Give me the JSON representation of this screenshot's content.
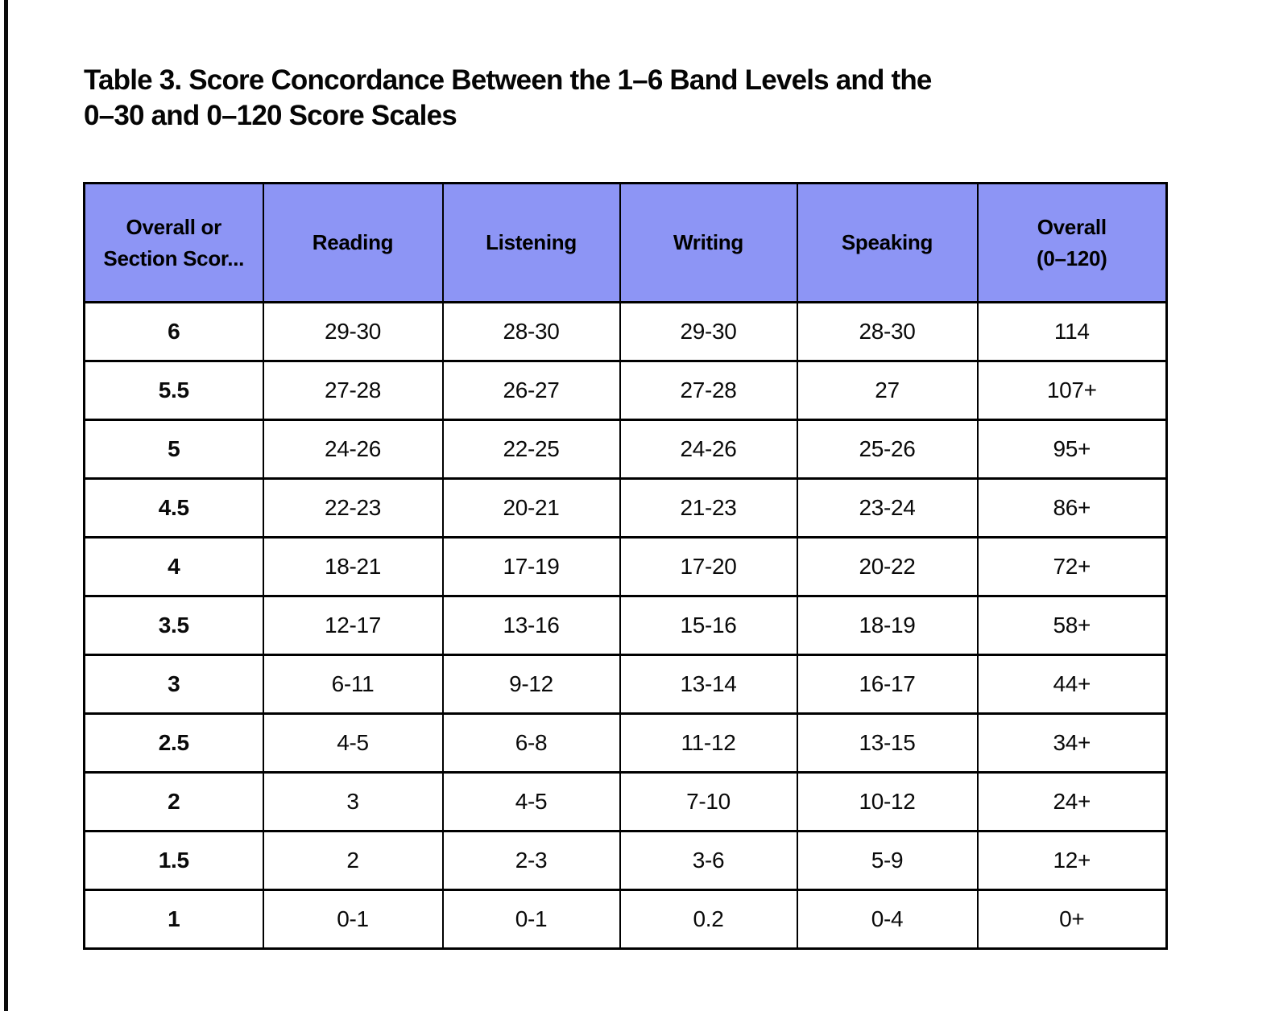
{
  "title": {
    "line1": "Table 3. Score Concordance Between the 1–6 Band Levels and the",
    "line2": "0–30 and 0–120 Score Scales"
  },
  "colors": {
    "page_bg": "#FFFFFF",
    "header_bg": "#8D95F5",
    "border": "#000000",
    "text": "#000000"
  },
  "table": {
    "columns": [
      {
        "key": "band-level",
        "lines": [
          "Overall or",
          "Section Scor..."
        ]
      },
      {
        "key": "reading",
        "lines": [
          "Reading"
        ]
      },
      {
        "key": "listening",
        "lines": [
          "Listening"
        ]
      },
      {
        "key": "writing",
        "lines": [
          "Writing"
        ]
      },
      {
        "key": "speaking",
        "lines": [
          "Speaking"
        ]
      },
      {
        "key": "overall",
        "lines": [
          "Overall",
          "(0–120)"
        ]
      }
    ],
    "rows": [
      [
        "6",
        "29-30",
        "28-30",
        "29-30",
        "28-30",
        "114"
      ],
      [
        "5.5",
        "27-28",
        "26-27",
        "27-28",
        "27",
        "107+"
      ],
      [
        "5",
        "24-26",
        "22-25",
        "24-26",
        "25-26",
        "95+"
      ],
      [
        "4.5",
        "22-23",
        "20-21",
        "21-23",
        "23-24",
        "86+"
      ],
      [
        "4",
        "18-21",
        "17-19",
        "17-20",
        "20-22",
        "72+"
      ],
      [
        "3.5",
        "12-17",
        "13-16",
        "15-16",
        "18-19",
        "58+"
      ],
      [
        "3",
        "6-11",
        "9-12",
        "13-14",
        "16-17",
        "44+"
      ],
      [
        "2.5",
        "4-5",
        "6-8",
        "11-12",
        "13-15",
        "34+"
      ],
      [
        "2",
        "3",
        "4-5",
        "7-10",
        "10-12",
        "24+"
      ],
      [
        "1.5",
        "2",
        "2-3",
        "3-6",
        "5-9",
        "12+"
      ],
      [
        "1",
        "0-1",
        "0-1",
        "0.2",
        "0-4",
        "0+"
      ]
    ]
  }
}
